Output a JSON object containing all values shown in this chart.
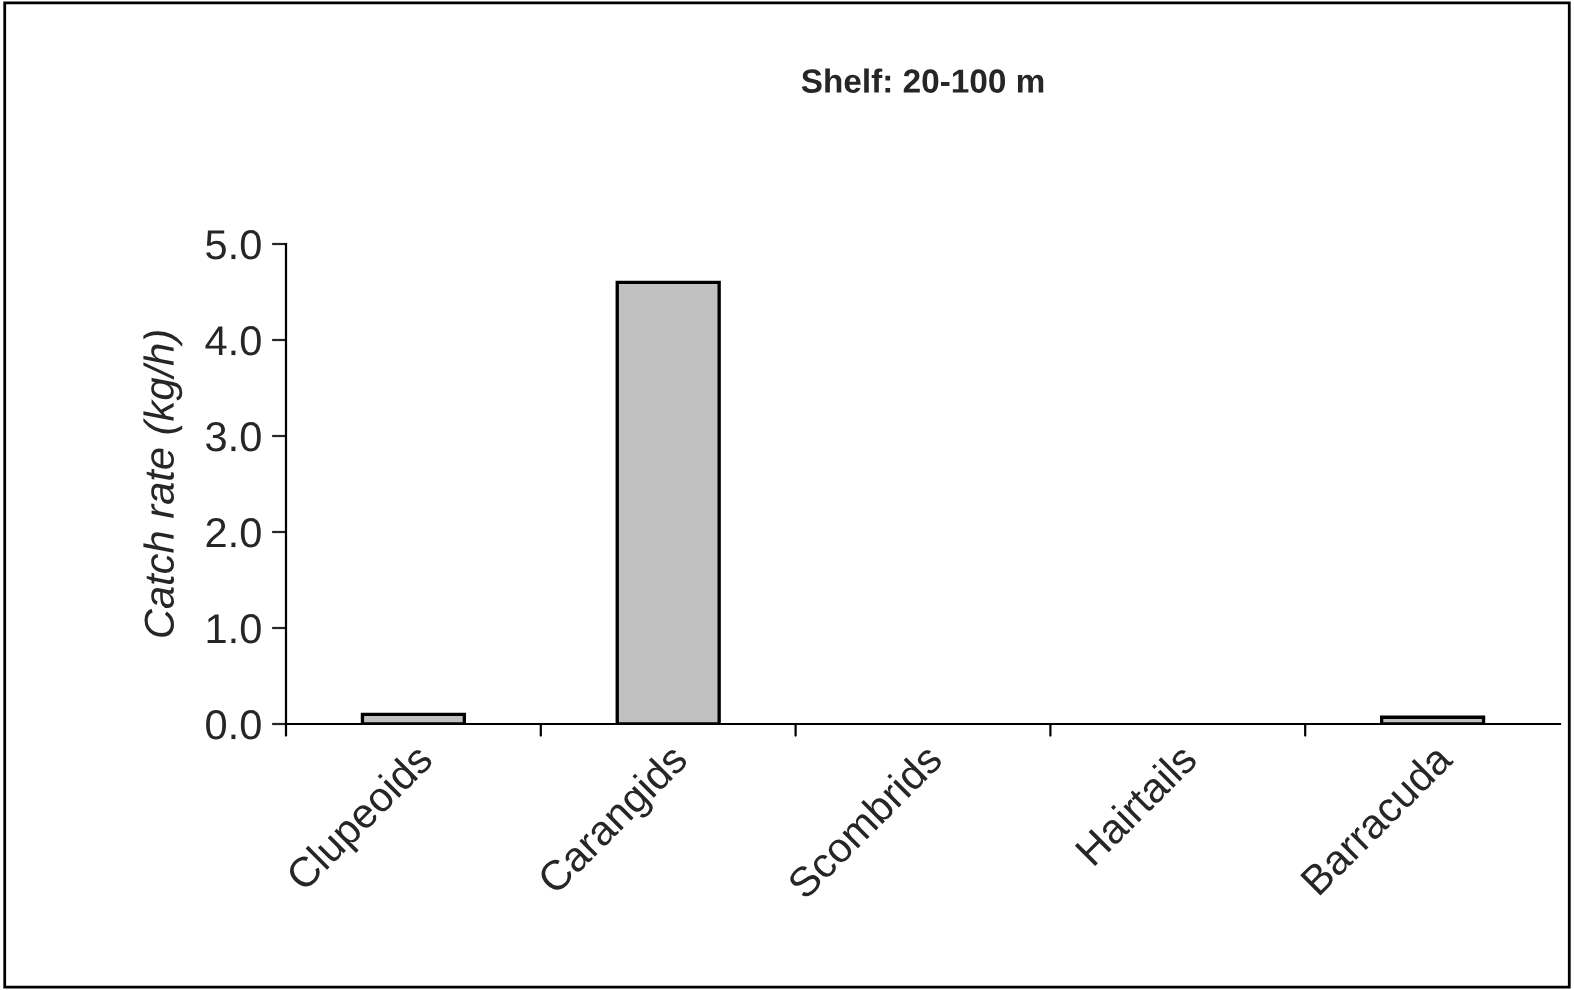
{
  "chart_data": {
    "type": "bar",
    "title": "Shelf: 20-100 m",
    "ylabel": "Catch rate (kg/h)",
    "categories": [
      "Clupeoids",
      "Carangids",
      "Scombrids",
      "Hairtails",
      "Barracuda"
    ],
    "values": [
      0.1,
      4.6,
      0,
      0,
      0.07
    ],
    "color": "#c0c0c0",
    "ylim": [
      0,
      5
    ],
    "yticks": [
      {
        "value": 0,
        "label": "0.0"
      },
      {
        "value": 1,
        "label": "1.0"
      },
      {
        "value": 2,
        "label": "2.0"
      },
      {
        "value": 3,
        "label": "3.0"
      },
      {
        "value": 4,
        "label": "4.0"
      },
      {
        "value": 5,
        "label": "5.0"
      }
    ],
    "grid": false,
    "legend": false
  }
}
